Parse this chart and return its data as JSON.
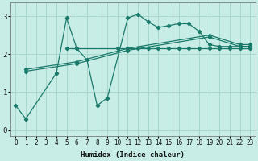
{
  "xlabel": "Humidex (Indice chaleur)",
  "background_color": "#c8ece6",
  "grid_color": "#a8d8cc",
  "line_color": "#1a7a6a",
  "xlim": [
    -0.5,
    23.5
  ],
  "ylim": [
    -0.15,
    3.35
  ],
  "xticks": [
    0,
    1,
    2,
    3,
    4,
    5,
    6,
    7,
    8,
    9,
    10,
    11,
    12,
    13,
    14,
    15,
    16,
    17,
    18,
    19,
    20,
    21,
    22,
    23
  ],
  "yticks": [
    0,
    1,
    2,
    3
  ],
  "series": [
    {
      "x": [
        0,
        1,
        4,
        5,
        6,
        7,
        8,
        9,
        11,
        12,
        13,
        14,
        15,
        16,
        17,
        18,
        19,
        20,
        21,
        22,
        23
      ],
      "y": [
        0.65,
        0.3,
        1.5,
        2.95,
        2.15,
        1.85,
        0.65,
        0.85,
        2.95,
        3.05,
        2.85,
        2.7,
        2.75,
        2.8,
        2.8,
        2.6,
        2.25,
        2.2,
        2.2,
        2.2,
        2.2
      ]
    },
    {
      "x": [
        5,
        6,
        10,
        11,
        12,
        13,
        14,
        15,
        16,
        17,
        18,
        19,
        20,
        21,
        22,
        23
      ],
      "y": [
        2.15,
        2.15,
        2.15,
        2.15,
        2.15,
        2.15,
        2.15,
        2.15,
        2.15,
        2.15,
        2.15,
        2.15,
        2.15,
        2.15,
        2.15,
        2.15
      ]
    },
    {
      "x": [
        1,
        6,
        11,
        19,
        22,
        23
      ],
      "y": [
        1.55,
        1.75,
        2.1,
        2.45,
        2.2,
        2.2
      ]
    },
    {
      "x": [
        1,
        6,
        11,
        19,
        22,
        23
      ],
      "y": [
        1.6,
        1.8,
        2.15,
        2.5,
        2.25,
        2.25
      ]
    }
  ]
}
